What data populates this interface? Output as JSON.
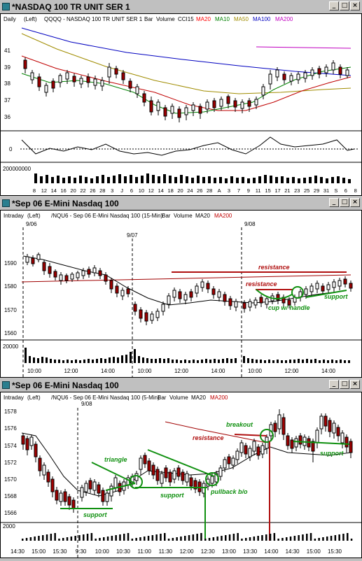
{
  "window1": {
    "title": "*NASDAQ 100 TR UNIT SER 1",
    "header": {
      "period": "Daily",
      "axis": "(Left)",
      "symbol": "QQQQ - NASDAQ 100 TR UNIT SER 1",
      "bar": "Bar",
      "volume": "Volume",
      "cci": "CCI15",
      "ma20": "MA20",
      "ma10": "MA10",
      "ma50": "MA50",
      "ma100": "MA100",
      "ma200": "MA200"
    },
    "price_ticks": [
      "41",
      "39",
      "38",
      "37",
      "36"
    ],
    "cci_tick": "0",
    "volume_tick": "200000000",
    "date_ticks": [
      "8",
      "12",
      "14",
      "16",
      "20",
      "22",
      "26",
      "28",
      "3",
      "J",
      "6",
      "10",
      "12",
      "14",
      "18",
      "20",
      "24",
      "26",
      "28",
      "A",
      "3",
      "7",
      "9",
      "11",
      "15",
      "17",
      "21",
      "23",
      "25",
      "29",
      "31",
      "S",
      "6",
      "8"
    ]
  },
  "window2": {
    "title": "*Sep 06  E-Mini Nasdaq 100",
    "header": {
      "period": "Intraday",
      "axis": "(Left)",
      "symbol": "/NQU6 - Sep 06 E-Mini Nasdaq 100 (15-Min)",
      "bar": "Bar",
      "volume": "Volume",
      "ma20": "MA20",
      "ma200": "MA200"
    },
    "date_markers": [
      "9/06",
      "9/07",
      "9/08"
    ],
    "price_ticks": [
      "1590",
      "1580",
      "1570",
      "1560"
    ],
    "volume_tick": "20000",
    "time_ticks": [
      "10:00",
      "12:00",
      "14:00",
      "10:00",
      "12:00",
      "14:00",
      "10:00",
      "12:00",
      "14:00"
    ],
    "annotations": {
      "resistance_upper": "resistance",
      "resistance_lower": "resistance",
      "cup": "cup w/ handle",
      "support": "support"
    }
  },
  "window3": {
    "title": "*Sep 06  E-Mini Nasdaq 100",
    "header": {
      "period": "Intraday",
      "axis": "(Left)",
      "symbol": "/NQU6 - Sep 06 E-Mini Nasdaq 100 (5-Min)",
      "bar": "Bar",
      "volume": "Volume",
      "ma20": "MA20",
      "ma200": "MA200"
    },
    "date_marker": "9/08",
    "price_ticks": [
      "1578",
      "1576",
      "1574",
      "1572",
      "1570",
      "1568",
      "1566"
    ],
    "volume_tick": "2000",
    "time_ticks": [
      "14:30",
      "15:00",
      "15:30",
      "9:30",
      "10:00",
      "10:30",
      "11:00",
      "11:30",
      "12:00",
      "12:30",
      "13:00",
      "13:30",
      "14:00",
      "14:30",
      "15:00",
      "15:30"
    ],
    "annotations": {
      "triangle": "triangle",
      "support_left": "support",
      "support_mid": "support",
      "resistance": "resistance",
      "breakout": "breakout",
      "pullback": "pullback b/o",
      "support_right": "support"
    }
  },
  "colors": {
    "ma20": "#ff0000",
    "ma10": "#008000",
    "ma50": "#a08c00",
    "ma100": "#0000c0",
    "ma200": "#c000c0",
    "annotation_red": "#b01010",
    "annotation_green": "#109010",
    "bar_up": "#ffffff",
    "bar_down": "#a00000"
  }
}
